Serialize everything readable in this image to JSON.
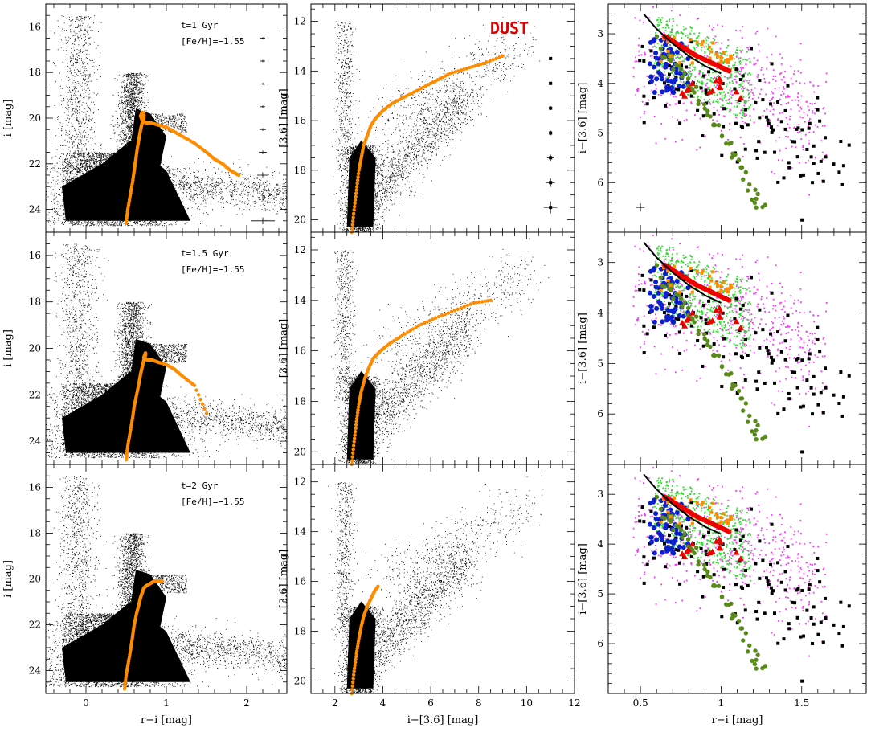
{
  "colors": {
    "isochrone": "#ff8c00",
    "dust_label": "#e00000",
    "green": "#22e022",
    "magenta": "#ff33ff",
    "black": "#000000",
    "blue": "#0a1fd0",
    "red": "#ee0000",
    "olive": "#5a8a1a",
    "orange_sq": "#ff8c00"
  },
  "annotations": {
    "dust_label": "DUST",
    "row1": {
      "age": "t=1 Gyr",
      "feh": "[Fe/H]=−1.55"
    },
    "row2": {
      "age": "t=1.5 Gyr",
      "feh": "[Fe/H]=−1.55"
    },
    "row3": {
      "age": "t=2 Gyr",
      "feh": "[Fe/H]=−1.55"
    }
  },
  "chart_data": [
    {
      "type": "scatter",
      "name": "optical CMD (column 1)",
      "xlabel": "r−i [mag]",
      "ylabel": "i [mag]",
      "xlim": [
        -0.5,
        2.5
      ],
      "ylim": [
        25,
        15
      ],
      "x_ticks": [
        "0",
        "1",
        "2"
      ],
      "y_ticks": [
        "16",
        "18",
        "20",
        "22",
        "24"
      ],
      "panels": [
        {
          "age": "t=1 Gyr",
          "isochrone": {
            "x": [
              0.5,
              0.52,
              0.55,
              0.58,
              0.6,
              0.62,
              0.64,
              0.66,
              0.68,
              0.7,
              0.72,
              0.72,
              0.7,
              0.68,
              0.7,
              0.74,
              0.8,
              0.9,
              1.0,
              1.1,
              1.2,
              1.35,
              1.5,
              1.6,
              1.7,
              1.8,
              1.9
            ],
            "y": [
              24.6,
              24.0,
              23.4,
              22.8,
              22.3,
              21.8,
              21.3,
              20.9,
              20.5,
              20.2,
              20.0,
              19.8,
              19.75,
              19.9,
              20.1,
              20.2,
              20.2,
              20.3,
              20.4,
              20.6,
              20.8,
              21.1,
              21.5,
              21.8,
              22.0,
              22.3,
              22.5
            ]
          },
          "error_bars": {
            "x": 2.2,
            "y": [
              16.5,
              17.5,
              18.5,
              19.5,
              20.5,
              21.5,
              22.5,
              23.5,
              24.5
            ],
            "yerr": [
              0.02,
              0.03,
              0.04,
              0.05,
              0.06,
              0.08,
              0.1,
              0.12,
              0.15
            ],
            "xerr": [
              0.02,
              0.02,
              0.02,
              0.03,
              0.04,
              0.05,
              0.07,
              0.1,
              0.15
            ]
          }
        },
        {
          "age": "t=1.5 Gyr",
          "isochrone": {
            "x": [
              0.5,
              0.52,
              0.55,
              0.58,
              0.6,
              0.63,
              0.66,
              0.68,
              0.7,
              0.72,
              0.74,
              0.74,
              0.72,
              0.76,
              0.82,
              0.9,
              1.0,
              1.1,
              1.2,
              1.35,
              1.5
            ],
            "y": [
              24.8,
              24.2,
              23.6,
              23.0,
              22.5,
              22.0,
              21.5,
              21.1,
              20.8,
              20.5,
              20.3,
              20.2,
              20.4,
              20.5,
              20.5,
              20.6,
              20.7,
              20.9,
              21.2,
              21.6,
              22.8
            ]
          }
        },
        {
          "age": "t=2 Gyr",
          "isochrone": {
            "x": [
              0.48,
              0.5,
              0.53,
              0.56,
              0.58,
              0.6,
              0.63,
              0.66,
              0.68,
              0.7,
              0.72,
              0.75,
              0.8,
              0.85,
              0.9,
              0.95
            ],
            "y": [
              24.8,
              24.2,
              23.6,
              23.0,
              22.5,
              22.0,
              21.5,
              21.1,
              20.8,
              20.6,
              20.4,
              20.3,
              20.2,
              20.1,
              20.1,
              20.1
            ]
          }
        }
      ]
    },
    {
      "type": "scatter",
      "name": "near-IR CMD (column 2)",
      "xlabel": "i−[3.6] [mag]",
      "ylabel": "[3.6] [mag]",
      "xlim": [
        1,
        12
      ],
      "ylim": [
        20.5,
        11.3
      ],
      "x_ticks": [
        "2",
        "4",
        "6",
        "8",
        "10",
        "12"
      ],
      "y_ticks": [
        "12",
        "14",
        "16",
        "18",
        "20"
      ],
      "panels": [
        {
          "isochrone": {
            "x": [
              2.7,
              2.8,
              2.9,
              3.0,
              3.1,
              3.2,
              3.35,
              3.5,
              3.7,
              4.0,
              4.4,
              5.0,
              5.6,
              6.2,
              6.8,
              7.5,
              8.2,
              9.0
            ],
            "y": [
              20.5,
              19.6,
              18.8,
              18.0,
              17.5,
              17.0,
              16.6,
              16.2,
              15.9,
              15.6,
              15.3,
              15.0,
              14.7,
              14.4,
              14.1,
              13.9,
              13.7,
              13.4
            ]
          },
          "error_bars": {
            "x": 11,
            "y": [
              13.5,
              14.5,
              15.5,
              16.5,
              17.5,
              18.5,
              19.5
            ],
            "yerr": [
              0.05,
              0.06,
              0.08,
              0.1,
              0.13,
              0.18,
              0.25
            ],
            "xerr": [
              0.05,
              0.06,
              0.08,
              0.1,
              0.15,
              0.2,
              0.3
            ]
          }
        },
        {
          "isochrone": {
            "x": [
              2.7,
              2.8,
              2.9,
              3.0,
              3.1,
              3.25,
              3.4,
              3.6,
              3.9,
              4.3,
              4.8,
              5.5,
              6.2,
              7.0,
              7.8,
              8.5
            ],
            "y": [
              20.5,
              19.6,
              18.8,
              18.1,
              17.6,
              17.1,
              16.7,
              16.3,
              16.0,
              15.7,
              15.4,
              15.0,
              14.7,
              14.4,
              14.1,
              14.0
            ]
          }
        },
        {
          "isochrone": {
            "x": [
              2.7,
              2.8,
              2.9,
              3.0,
              3.1,
              3.2,
              3.35,
              3.5,
              3.65,
              3.8
            ],
            "y": [
              20.5,
              19.6,
              18.9,
              18.3,
              17.8,
              17.4,
              17.0,
              16.7,
              16.4,
              16.2
            ]
          }
        }
      ]
    },
    {
      "type": "scatter",
      "name": "color-color (column 3)",
      "xlabel": "r−i [mag]",
      "ylabel": "i−[3.6] [mag]",
      "xlim": [
        0.3,
        1.9
      ],
      "ylim": [
        7,
        2.4
      ],
      "x_ticks": [
        "0.5",
        "1",
        "1.5"
      ],
      "y_ticks": [
        "3",
        "4",
        "5",
        "6",
        "7"
      ],
      "black_line": {
        "x": [
          0.52,
          0.6,
          0.7,
          0.8,
          0.9,
          1.0
        ],
        "y": [
          2.6,
          2.9,
          3.2,
          3.45,
          3.65,
          3.8
        ]
      },
      "olive_sequence": {
        "x": [
          0.62,
          0.7,
          0.8,
          0.9,
          1.0,
          1.1,
          1.2,
          1.25
        ],
        "y": [
          3.3,
          3.6,
          4.0,
          4.5,
          5.0,
          5.6,
          6.2,
          6.5
        ]
      },
      "red_sequence": {
        "x": [
          0.65,
          0.75,
          0.85,
          0.95,
          1.05
        ],
        "y": [
          3.05,
          3.25,
          3.45,
          3.6,
          3.75
        ]
      },
      "error_cross": {
        "x": 0.5,
        "y": 6.5,
        "xerr": 0.03,
        "yerr": 0.08
      }
    }
  ]
}
